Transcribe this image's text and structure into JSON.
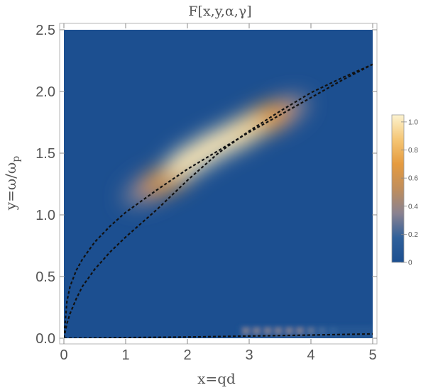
{
  "chart_data": {
    "type": "heatmap",
    "title": "F[x,y,α,γ]",
    "xlabel": "x=qd",
    "ylabel_main": "y=ω/ω",
    "ylabel_sub": "p",
    "xlim": [
      0,
      5
    ],
    "ylim": [
      0,
      2.5
    ],
    "x_ticks": [
      0,
      1,
      2,
      3,
      4,
      5
    ],
    "x_tick_labels": [
      "0",
      "1",
      "2",
      "3",
      "4",
      "5"
    ],
    "y_ticks": [
      0.0,
      0.5,
      1.0,
      1.5,
      2.0,
      2.5
    ],
    "y_tick_labels": [
      "0.0",
      "0.5",
      "1.0",
      "1.5",
      "2.0",
      "2.5"
    ],
    "background_value": 0.0,
    "colorbar": {
      "range": [
        0,
        1.05
      ],
      "ticks": [
        0,
        0.2,
        0.4,
        0.6,
        0.8,
        1.0
      ],
      "tick_labels": [
        "0",
        "0.2",
        "0.4",
        "0.6",
        "0.8",
        "1.0"
      ],
      "colors": [
        "#1c4f90",
        "#30609a",
        "#8a8290",
        "#c08e5c",
        "#e59b40",
        "#f5c675",
        "#fcf3d0"
      ]
    },
    "hotspot_ridge": [
      {
        "x": 2.1,
        "y": 1.46,
        "value": 1.0
      },
      {
        "x": 2.4,
        "y": 1.55,
        "value": 1.0
      },
      {
        "x": 2.8,
        "y": 1.65,
        "value": 0.95
      },
      {
        "x": 3.2,
        "y": 1.76,
        "value": 0.7
      },
      {
        "x": 1.7,
        "y": 1.3,
        "value": 0.6
      },
      {
        "x": 1.4,
        "y": 1.22,
        "value": 0.3
      },
      {
        "x": 3.5,
        "y": 1.82,
        "value": 0.35
      }
    ],
    "low_band_spots": [
      {
        "x": 2.95,
        "y": 0.06,
        "value": 0.3
      },
      {
        "x": 3.12,
        "y": 0.06,
        "value": 0.3
      },
      {
        "x": 3.3,
        "y": 0.06,
        "value": 0.3
      },
      {
        "x": 3.47,
        "y": 0.06,
        "value": 0.3
      },
      {
        "x": 3.65,
        "y": 0.06,
        "value": 0.3
      },
      {
        "x": 3.82,
        "y": 0.06,
        "value": 0.3
      },
      {
        "x": 4.0,
        "y": 0.06,
        "value": 0.25
      },
      {
        "x": 4.18,
        "y": 0.06,
        "value": 0.2
      },
      {
        "x": 4.36,
        "y": 0.06,
        "value": 0.15
      }
    ],
    "series": [
      {
        "style": "dashed",
        "x": [
          0,
          0.05,
          0.1,
          0.2,
          0.3,
          0.5,
          0.75,
          1,
          1.5,
          2,
          2.5,
          3,
          3.5,
          4,
          4.5,
          5
        ],
        "y": [
          0,
          0.3,
          0.42,
          0.55,
          0.64,
          0.78,
          0.91,
          1.02,
          1.2,
          1.37,
          1.52,
          1.67,
          1.81,
          1.95,
          2.09,
          2.22
        ]
      },
      {
        "style": "dashed",
        "x": [
          0,
          0.05,
          0.1,
          0.2,
          0.3,
          0.5,
          0.75,
          1,
          1.5,
          2,
          2.5,
          3,
          3.5,
          4,
          4.5,
          5
        ],
        "y": [
          0,
          0.12,
          0.2,
          0.32,
          0.42,
          0.56,
          0.7,
          0.82,
          1.04,
          1.28,
          1.5,
          1.68,
          1.84,
          1.99,
          2.11,
          2.22
        ]
      },
      {
        "style": "dashed",
        "x": [
          0,
          1,
          2,
          3,
          4,
          5
        ],
        "y": [
          0.0,
          0.005,
          0.01,
          0.018,
          0.026,
          0.035
        ]
      }
    ]
  }
}
